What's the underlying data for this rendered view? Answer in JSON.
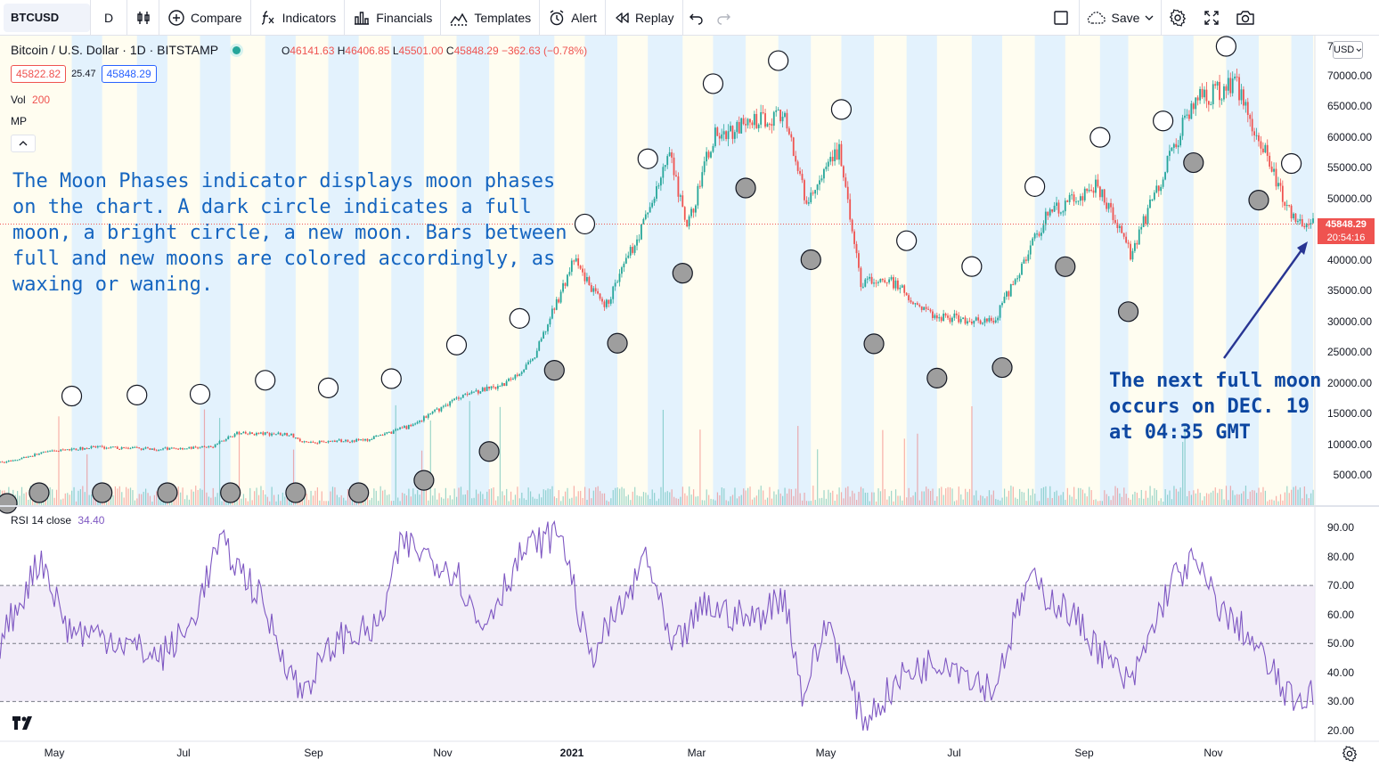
{
  "toolbar": {
    "symbol": "BTCUSD",
    "interval": "D",
    "compare": "Compare",
    "indicators": "Indicators",
    "financials": "Financials",
    "templates": "Templates",
    "alert": "Alert",
    "replay": "Replay",
    "save": "Save",
    "icons": [
      "bar-style-icon",
      "plus-circle-icon",
      "fx-icon",
      "financials-icon",
      "templates-icon",
      "alarm-clock-icon",
      "replay-icon",
      "undo-icon",
      "redo-icon",
      "layout-icon",
      "cloud-icon",
      "chevron-down-icon",
      "gear-icon",
      "fullscreen-icon",
      "camera-icon"
    ]
  },
  "legend": {
    "title": "Bitcoin / U.S. Dollar · 1D · BITSTAMP",
    "o_label": "O",
    "o": "46141.63",
    "h_label": "H",
    "h": "46406.85",
    "l_label": "L",
    "l": "45501.00",
    "c_label": "C",
    "c": "45848.29",
    "change": "−362.63 (−0.78%)",
    "bid": "45822.82",
    "spread": "25.47",
    "ask": "45848.29",
    "vol_label": "Vol",
    "vol_value": "200",
    "mp_label": "MP"
  },
  "annotations": {
    "main": "The Moon Phases indicator displays moon phases\non the chart. A dark circle indicates a full\nmoon, a bright circle, a new moon. Bars between\nfull and new moons are colored accordingly, as\nwaxing or waning.",
    "next_full_moon": "The next full moon\noccurs on DEC. 19\nat 04:35 GMT"
  },
  "price_axis": {
    "currency": "USD",
    "top_partial_label": "7",
    "labels": [
      "70000.00",
      "65000.00",
      "60000.00",
      "55000.00",
      "50000.00",
      "45000.00",
      "40000.00",
      "35000.00",
      "30000.00",
      "25000.00",
      "20000.00",
      "15000.00",
      "10000.00",
      "5000.00"
    ],
    "last_price": "45848.29",
    "countdown": "20:54:16"
  },
  "rsi": {
    "label": "RSI 14 close",
    "value": "34.40",
    "axis_labels": [
      "90.00",
      "80.00",
      "70.00",
      "60.00",
      "50.00",
      "40.00",
      "30.00",
      "20.00"
    ],
    "upper_band": 70,
    "middle_band": 50,
    "lower_band": 30
  },
  "time_axis": {
    "labels": [
      "May",
      "Jul",
      "Sep",
      "Nov",
      "2021",
      "Mar",
      "May",
      "Jul",
      "Sep",
      "Nov"
    ]
  },
  "colors": {
    "up": "#26a69a",
    "down": "#ef5350",
    "waxing_band": "#e3f2fd",
    "waning_band": "#fffdf0",
    "rsi_line": "#7e57c2",
    "rsi_band": "#ede7f6",
    "annotation": "#1565c0"
  },
  "chart_data": {
    "type": "candlestick",
    "title": "Bitcoin / U.S. Dollar · 1D · BITSTAMP",
    "ylim": [
      0,
      77000
    ],
    "price_path": [
      [
        "2020-04-20",
        7000
      ],
      [
        "2020-05-10",
        8700
      ],
      [
        "2020-06-01",
        9500
      ],
      [
        "2020-07-01",
        9200
      ],
      [
        "2020-07-25",
        9500
      ],
      [
        "2020-08-05",
        11700
      ],
      [
        "2020-08-30",
        11700
      ],
      [
        "2020-09-05",
        10300
      ],
      [
        "2020-10-05",
        10700
      ],
      [
        "2020-10-25",
        13000
      ],
      [
        "2020-11-20",
        18500
      ],
      [
        "2020-12-05",
        19200
      ],
      [
        "2020-12-20",
        23500
      ],
      [
        "2021-01-08",
        40000
      ],
      [
        "2021-01-22",
        32000
      ],
      [
        "2021-02-08",
        45000
      ],
      [
        "2021-02-21",
        57000
      ],
      [
        "2021-03-01",
        45000
      ],
      [
        "2021-03-13",
        60000
      ],
      [
        "2021-04-14",
        64000
      ],
      [
        "2021-04-25",
        49000
      ],
      [
        "2021-05-10",
        58000
      ],
      [
        "2021-05-20",
        36000
      ],
      [
        "2021-06-01",
        37000
      ],
      [
        "2021-06-22",
        31000
      ],
      [
        "2021-07-20",
        29800
      ],
      [
        "2021-08-14",
        47500
      ],
      [
        "2021-09-06",
        52000
      ],
      [
        "2021-09-21",
        41000
      ],
      [
        "2021-10-20",
        66000
      ],
      [
        "2021-11-09",
        68500
      ],
      [
        "2021-12-04",
        47000
      ],
      [
        "2021-12-14",
        45848.29
      ]
    ],
    "last_close": 45848.29,
    "moon_phases_full": [
      "2020-05-07",
      "2020-06-05",
      "2020-07-05",
      "2020-08-03",
      "2020-09-02",
      "2020-10-01",
      "2020-10-31",
      "2020-11-30",
      "2020-12-30",
      "2021-01-28",
      "2021-02-27",
      "2021-03-28",
      "2021-04-27",
      "2021-05-26",
      "2021-06-24",
      "2021-07-24",
      "2021-08-22",
      "2021-09-20",
      "2021-10-20",
      "2021-11-19"
    ],
    "moon_phases_new": [
      "2020-05-22",
      "2020-06-21",
      "2020-07-20",
      "2020-08-19",
      "2020-09-17",
      "2020-10-16",
      "2020-11-15",
      "2020-12-14",
      "2021-01-13",
      "2021-02-11",
      "2021-03-13",
      "2021-04-12",
      "2021-05-11",
      "2021-06-10",
      "2021-07-10",
      "2021-08-08",
      "2021-09-07",
      "2021-10-06",
      "2021-11-04",
      "2021-12-04"
    ],
    "rsi_series": {
      "name": "RSI 14 close",
      "ylim": [
        20,
        92
      ],
      "path": [
        [
          "2020-04-20",
          52
        ],
        [
          "2020-05-08",
          80
        ],
        [
          "2020-05-20",
          55
        ],
        [
          "2020-06-10",
          52
        ],
        [
          "2020-07-01",
          45
        ],
        [
          "2020-07-15",
          55
        ],
        [
          "2020-07-29",
          85
        ],
        [
          "2020-08-15",
          68
        ],
        [
          "2020-09-04",
          33
        ],
        [
          "2020-09-22",
          52
        ],
        [
          "2020-10-10",
          55
        ],
        [
          "2020-10-21",
          85
        ],
        [
          "2020-11-15",
          75
        ],
        [
          "2020-11-26",
          55
        ],
        [
          "2020-12-16",
          82
        ],
        [
          "2021-01-02",
          89
        ],
        [
          "2021-01-15",
          45
        ],
        [
          "2021-02-05",
          70
        ],
        [
          "2021-02-10",
          82
        ],
        [
          "2021-02-22",
          47
        ],
        [
          "2021-03-09",
          63
        ],
        [
          "2021-03-31",
          58
        ],
        [
          "2021-04-15",
          67
        ],
        [
          "2021-04-23",
          32
        ],
        [
          "2021-05-05",
          58
        ],
        [
          "2021-05-21",
          23
        ],
        [
          "2021-06-10",
          40
        ],
        [
          "2021-06-28",
          45
        ],
        [
          "2021-07-20",
          34
        ],
        [
          "2021-08-05",
          72
        ],
        [
          "2021-08-25",
          60
        ],
        [
          "2021-09-10",
          45
        ],
        [
          "2021-09-21",
          35
        ],
        [
          "2021-10-10",
          72
        ],
        [
          "2021-10-20",
          78
        ],
        [
          "2021-11-05",
          58
        ],
        [
          "2021-11-12",
          55
        ],
        [
          "2021-12-04",
          30
        ],
        [
          "2021-12-14",
          34.4
        ]
      ]
    }
  }
}
